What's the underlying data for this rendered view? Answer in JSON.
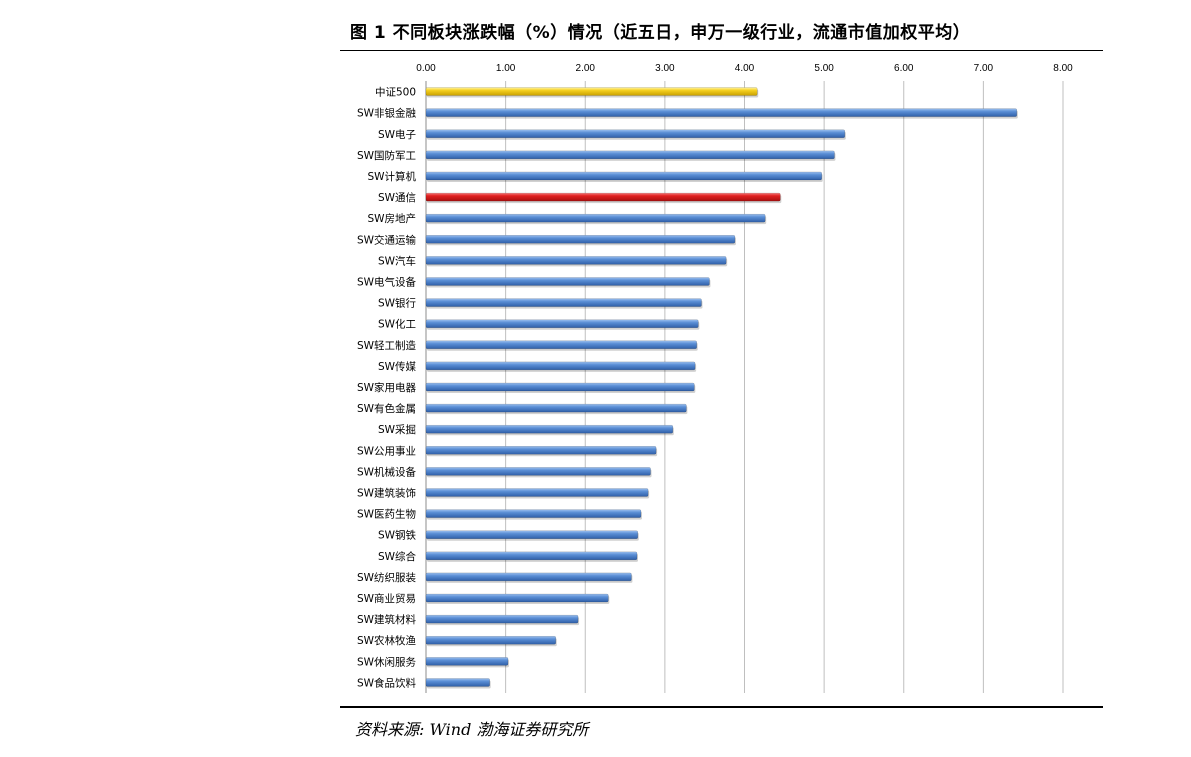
{
  "title": "图 1  不同板块涨跌幅（%）情况（近五日，申万一级行业，流通市值加权平均）",
  "source": "资料来源: Wind 渤海证券研究所",
  "colors": {
    "default_bar": "#4a7fc9",
    "highlight_index": "#f2c80f",
    "highlight_sector": "#d81e1e",
    "grid": "#bfbfbf"
  },
  "chart_data": {
    "type": "bar",
    "orientation": "horizontal",
    "xlim": [
      0,
      8
    ],
    "x_ticks": [
      "0.00",
      "1.00",
      "2.00",
      "3.00",
      "4.00",
      "5.00",
      "6.00",
      "7.00",
      "8.00"
    ],
    "grid": true,
    "axis_position": "top",
    "categories": [
      "中证500",
      "SW非银金融",
      "SW电子",
      "SW国防军工",
      "SW计算机",
      "SW通信",
      "SW房地产",
      "SW交通运输",
      "SW汽车",
      "SW电气设备",
      "SW银行",
      "SW化工",
      "SW轻工制造",
      "SW传媒",
      "SW家用电器",
      "SW有色金属",
      "SW采掘",
      "SW公用事业",
      "SW机械设备",
      "SW建筑装饰",
      "SW医药生物",
      "SW钢铁",
      "SW综合",
      "SW纺织服装",
      "SW商业贸易",
      "SW建筑材料",
      "SW农林牧渔",
      "SW休闲服务",
      "SW食品饮料"
    ],
    "values": [
      4.16,
      7.42,
      5.26,
      5.13,
      4.97,
      4.45,
      4.26,
      3.88,
      3.77,
      3.56,
      3.46,
      3.42,
      3.4,
      3.38,
      3.37,
      3.27,
      3.1,
      2.89,
      2.82,
      2.79,
      2.7,
      2.66,
      2.65,
      2.58,
      2.29,
      1.91,
      1.63,
      1.03,
      0.8
    ],
    "highlight": {
      "中证500": "highlight_index",
      "SW通信": "highlight_sector"
    }
  }
}
